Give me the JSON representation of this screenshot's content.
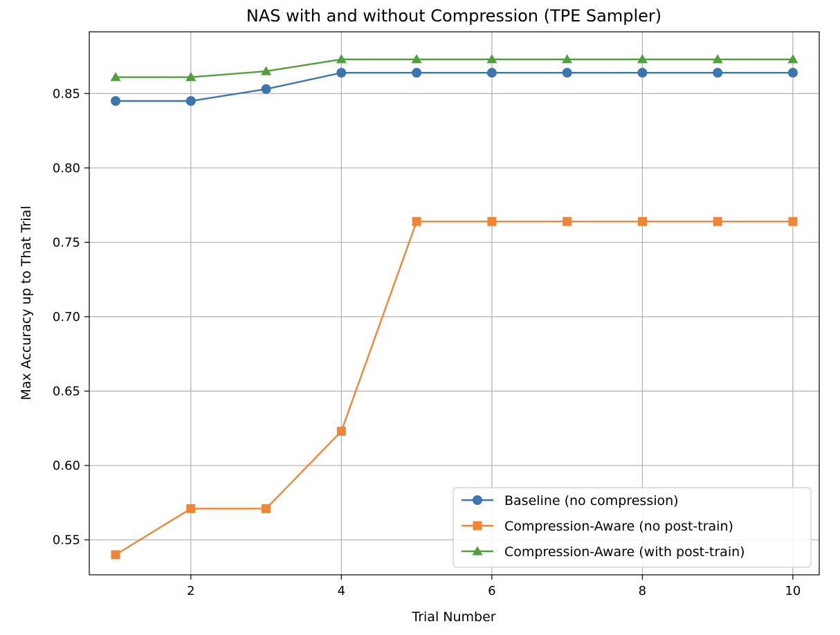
{
  "chart_data": {
    "type": "line",
    "title": "NAS with and without Compression (TPE Sampler)",
    "xlabel": "Trial Number",
    "ylabel": "Max Accuracy up to That Trial",
    "x": [
      1,
      2,
      3,
      4,
      5,
      6,
      7,
      8,
      9,
      10
    ],
    "xlim": [
      0.65,
      10.35
    ],
    "ylim": [
      0.5265,
      0.8915
    ],
    "xticks": [
      2,
      4,
      6,
      8,
      10
    ],
    "xtick_labels": [
      "2",
      "4",
      "6",
      "8",
      "10"
    ],
    "yticks": [
      0.55,
      0.6,
      0.65,
      0.7,
      0.75,
      0.8,
      0.85
    ],
    "ytick_labels": [
      "0.55",
      "0.60",
      "0.65",
      "0.70",
      "0.75",
      "0.80",
      "0.85"
    ],
    "grid": true,
    "legend_position": "lower-right",
    "series": [
      {
        "name": "Baseline (no compression)",
        "color": "#3b76af",
        "marker": "circle",
        "values": [
          0.845,
          0.845,
          0.853,
          0.864,
          0.864,
          0.864,
          0.864,
          0.864,
          0.864,
          0.864
        ]
      },
      {
        "name": "Compression-Aware (no post-train)",
        "color": "#ef8636",
        "marker": "square",
        "values": [
          0.54,
          0.571,
          0.571,
          0.623,
          0.764,
          0.764,
          0.764,
          0.764,
          0.764,
          0.764
        ]
      },
      {
        "name": "Compression-Aware (with post-train)",
        "color": "#519e3e",
        "marker": "triangle",
        "values": [
          0.861,
          0.861,
          0.865,
          0.873,
          0.873,
          0.873,
          0.873,
          0.873,
          0.873,
          0.873
        ]
      }
    ]
  }
}
